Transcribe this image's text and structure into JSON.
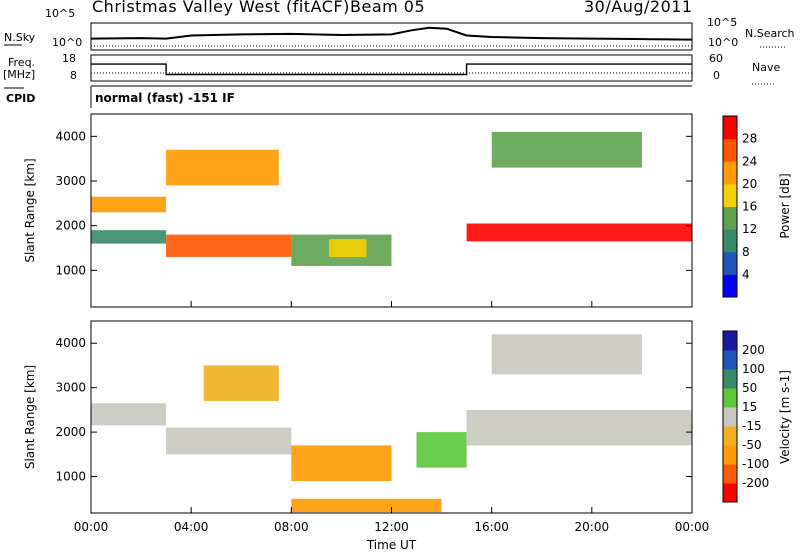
{
  "header": {
    "title": "Christmas Valley West (fitACF)",
    "beam": "Beam 05",
    "date": "30/Aug/2011"
  },
  "left_labels": {
    "nsky": "N.Sky",
    "freq": "Freq.",
    "freq_unit": "[MHz]",
    "cpid": "CPID",
    "nsky_ticks": [
      "10^5",
      "10^0"
    ],
    "freq_ticks": [
      "18",
      "8"
    ]
  },
  "right_labels": {
    "nsearch": "N.Search",
    "nave": "Nave",
    "nsearch_ticks": [
      "10^5",
      "10^0"
    ],
    "nave_ticks": [
      "60",
      "0"
    ]
  },
  "cpid_text": "normal (fast) -151 IF",
  "colors": {
    "power": [
      "#0000ff",
      "#2255bb",
      "#3a8a6a",
      "#5fa24e",
      "#f5d000",
      "#ff9a00",
      "#ff5500",
      "#ff0000"
    ],
    "velocity": [
      "#ff0000",
      "#ff5a00",
      "#ff9a00",
      "#f0b020",
      "#c8c8c0",
      "#5ac83a",
      "#3a8a6a",
      "#2255bb",
      "#1a1aa0"
    ]
  },
  "chart_data": [
    {
      "type": "line",
      "title": "N.Sky / N.Search",
      "x": [
        0,
        2,
        3,
        4,
        6,
        8,
        10,
        12,
        12.8,
        13.5,
        14.2,
        15,
        16,
        18,
        20,
        22,
        24
      ],
      "series": [
        {
          "values": [
            2.0,
            2.1,
            2.0,
            2.6,
            2.8,
            2.9,
            2.7,
            2.8,
            3.6,
            4.1,
            3.9,
            2.6,
            2.3,
            2.1,
            2.0,
            1.9,
            1.8
          ]
        }
      ],
      "ylim": [
        0,
        5
      ]
    },
    {
      "type": "line",
      "title": "Freq.",
      "x": [
        0,
        3.0,
        3.0,
        15.0,
        15.0,
        24
      ],
      "series": [
        {
          "values": [
            14.5,
            14.5,
            10.5,
            10.5,
            14.5,
            14.5
          ]
        }
      ],
      "ylim": [
        8,
        18
      ]
    },
    {
      "type": "heatmap",
      "title": "Power [dB]",
      "xlabel": "",
      "ylabel": "Slant Range [km]",
      "x_ticks": [
        "00:00",
        "04:00",
        "08:00",
        "12:00",
        "16:00",
        "20:00",
        "00:00"
      ],
      "y_ticks": [
        1000,
        2000,
        3000,
        4000
      ],
      "ylim": [
        180,
        4500
      ],
      "colorbar_label": "Power [dB]",
      "colorbar_ticks": [
        4,
        8,
        12,
        16,
        20,
        24,
        28
      ],
      "bands": [
        {
          "t0": 0.0,
          "t1": 3.0,
          "r0": 2300,
          "r1": 2650,
          "level": 20
        },
        {
          "t0": 0.0,
          "t1": 3.0,
          "r0": 1600,
          "r1": 1900,
          "level": 10
        },
        {
          "t0": 3.0,
          "t1": 8.0,
          "r0": 1300,
          "r1": 1800,
          "level": 24
        },
        {
          "t0": 3.0,
          "t1": 7.5,
          "r0": 2900,
          "r1": 3700,
          "level": 22
        },
        {
          "t0": 8.0,
          "t1": 12.0,
          "r0": 1100,
          "r1": 1800,
          "level": 12
        },
        {
          "t0": 9.5,
          "t1": 11.0,
          "r0": 1300,
          "r1": 1700,
          "level": 18
        },
        {
          "t0": 15.0,
          "t1": 24.0,
          "r0": 1650,
          "r1": 2050,
          "level": 28
        },
        {
          "t0": 16.0,
          "t1": 22.0,
          "r0": 3300,
          "r1": 4100,
          "level": 12
        }
      ]
    },
    {
      "type": "heatmap",
      "title": "Velocity [m s-1]",
      "xlabel": "Time UT",
      "ylabel": "Slant Range [km]",
      "x_ticks": [
        "00:00",
        "04:00",
        "08:00",
        "12:00",
        "16:00",
        "20:00",
        "00:00"
      ],
      "y_ticks": [
        1000,
        2000,
        3000,
        4000
      ],
      "ylim": [
        180,
        4500
      ],
      "colorbar_label": "Velocity [m s-1]",
      "colorbar_ticks": [
        200,
        100,
        50,
        15,
        -15,
        -50,
        -100,
        -200
      ],
      "bands": [
        {
          "t0": 0.0,
          "t1": 3.0,
          "r0": 2150,
          "r1": 2650,
          "level": 0
        },
        {
          "t0": 3.0,
          "t1": 8.0,
          "r0": 1500,
          "r1": 2100,
          "level": 0
        },
        {
          "t0": 4.5,
          "t1": 7.5,
          "r0": 2700,
          "r1": 3500,
          "level": -40
        },
        {
          "t0": 8.0,
          "t1": 12.0,
          "r0": 900,
          "r1": 1700,
          "level": -60
        },
        {
          "t0": 13.0,
          "t1": 15.0,
          "r0": 1200,
          "r1": 2000,
          "level": 30
        },
        {
          "t0": 15.0,
          "t1": 24.0,
          "r0": 1700,
          "r1": 2500,
          "level": 0
        },
        {
          "t0": 16.0,
          "t1": 22.0,
          "r0": 3300,
          "r1": 4200,
          "level": 0
        },
        {
          "t0": 8.0,
          "t1": 14.0,
          "r0": 200,
          "r1": 500,
          "level": -60
        }
      ]
    }
  ]
}
